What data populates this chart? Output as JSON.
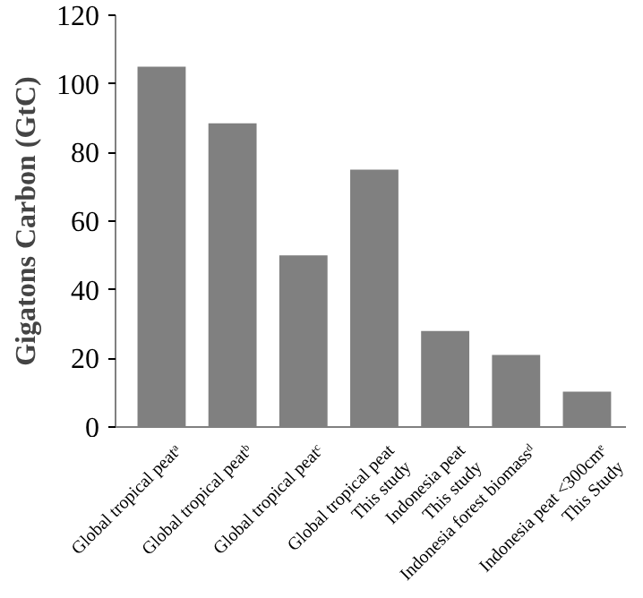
{
  "chart_data": {
    "type": "bar",
    "ylabel": "Gigatons Carbon (GtC)",
    "categories": [
      "Global tropical peatᵃ",
      "Global tropical peatᵇ",
      "Global tropical peatᶜ",
      "Global tropical peat\nThis study",
      "Indonesia peat\nThis study",
      "Indonesia forest biomassᵈ",
      "Indonesia peat <300cmᵉ\nThis Study"
    ],
    "values": [
      105,
      88.5,
      50,
      75,
      28,
      21,
      10.3
    ],
    "color": "#808080",
    "ylim": [
      0,
      120
    ],
    "yticks": [
      0,
      20,
      40,
      60,
      80,
      100,
      120
    ],
    "grid": false
  }
}
